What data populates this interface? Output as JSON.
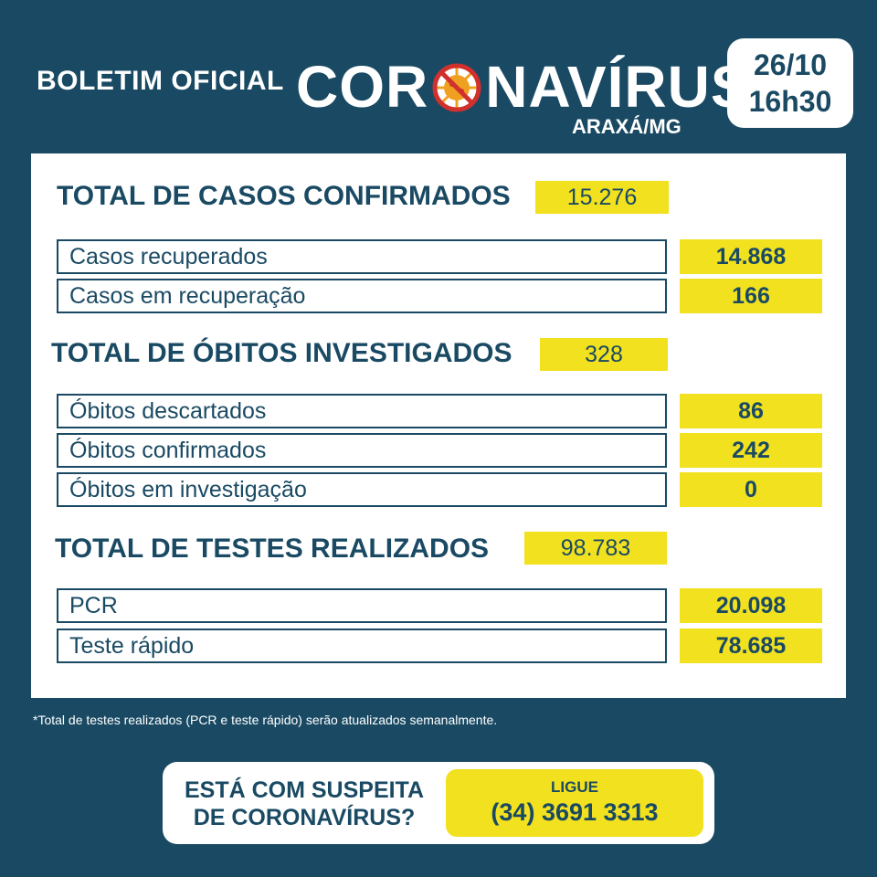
{
  "header": {
    "prefix": "BOLETIM OFICIAL",
    "title_part1": "COR",
    "title_part2": "NAVÍRUS",
    "city": "ARAXÁ/MG",
    "date": "26/10",
    "time": "16h30"
  },
  "sections": {
    "cases": {
      "title": "TOTAL DE CASOS CONFIRMADOS",
      "total": "15.276",
      "rows": [
        {
          "label": "Casos recuperados",
          "value": "14.868"
        },
        {
          "label": "Casos em recuperação",
          "value": "166"
        }
      ]
    },
    "deaths": {
      "title": "TOTAL DE ÓBITOS INVESTIGADOS",
      "total": "328",
      "rows": [
        {
          "label": "Óbitos descartados",
          "value": "86"
        },
        {
          "label": "Óbitos confirmados",
          "value": "242"
        },
        {
          "label": "Óbitos em investigação",
          "value": "0"
        }
      ]
    },
    "tests": {
      "title": "TOTAL DE TESTES REALIZADOS",
      "total": "98.783",
      "rows": [
        {
          "label": "PCR",
          "value": "20.098"
        },
        {
          "label": "Teste rápido",
          "value": "78.685"
        }
      ]
    }
  },
  "footnote": "*Total de testes realizados (PCR e teste rápido) serão atualizados semanalmente.",
  "cta": {
    "line1": "ESTÁ COM SUSPEITA",
    "line2": "DE CORONAVÍRUS?",
    "ligue": "LIGUE",
    "phone": "(34) 3691 3313"
  },
  "colors": {
    "background": "#1a4a63",
    "highlight": "#f2e11f"
  },
  "icons": {
    "virus": "virus-prohibited-icon"
  }
}
